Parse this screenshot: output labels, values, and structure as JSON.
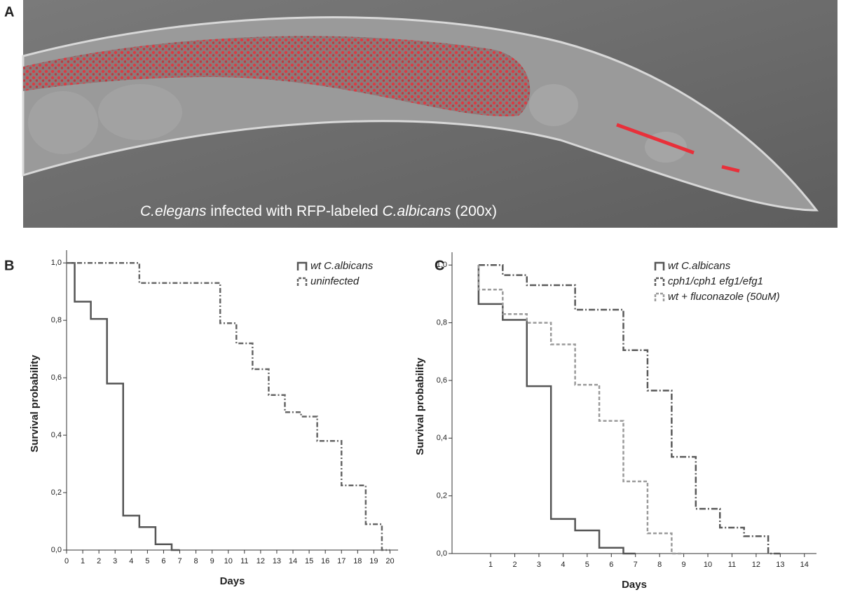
{
  "panel_a": {
    "label": "A",
    "caption": [
      "C.elegans",
      " infected with RFP-labeled ",
      "C.albicans",
      " (200x)"
    ]
  },
  "chart_data": [
    {
      "type": "line",
      "step": true,
      "panel_label": "B",
      "x_label": "Days",
      "y_label": "Survival probability",
      "xlim": [
        0,
        20.5
      ],
      "ylim": [
        0,
        1.02
      ],
      "xticks": [
        0,
        1,
        2,
        3,
        4,
        5,
        6,
        7,
        8,
        9,
        10,
        11,
        12,
        13,
        14,
        15,
        16,
        17,
        18,
        19,
        20
      ],
      "yticks": [
        {
          "value": 0,
          "label": "0,0"
        },
        {
          "value": 0.2,
          "label": "0,2"
        },
        {
          "value": 0.4,
          "label": "0,4"
        },
        {
          "value": 0.6,
          "label": "0,6"
        },
        {
          "value": 0.8,
          "label": "0,8"
        },
        {
          "value": 1,
          "label": "1,0"
        }
      ],
      "series": [
        {
          "name": "wt C.albicans",
          "color": "#555555",
          "dash": "none",
          "x": [
            0,
            0.5,
            1.5,
            2.5,
            3.5,
            4.5,
            5.5,
            6.5,
            7
          ],
          "values": [
            1,
            0.865,
            0.805,
            0.58,
            0.12,
            0.08,
            0.02,
            0,
            0
          ]
        },
        {
          "name": "uninfected",
          "color": "#666666",
          "dash": "7 3 2 3",
          "x": [
            0,
            4.5,
            9.5,
            10.5,
            11.5,
            12.5,
            13.5,
            14.5,
            15.5,
            17,
            18.5,
            19.5,
            20
          ],
          "values": [
            1,
            0.93,
            0.79,
            0.72,
            0.63,
            0.54,
            0.48,
            0.465,
            0.38,
            0.225,
            0.09,
            0,
            0
          ]
        }
      ]
    },
    {
      "type": "line",
      "step": true,
      "panel_label": "C",
      "x_label": "Days",
      "y_label": "Survival probability",
      "xlim": [
        -0.6,
        14.5
      ],
      "ylim": [
        0,
        1.02
      ],
      "xticks": [
        1,
        2,
        3,
        4,
        5,
        6,
        7,
        8,
        9,
        10,
        11,
        12,
        13,
        14
      ],
      "yticks": [
        {
          "value": 0,
          "label": "0,0"
        },
        {
          "value": 0.2,
          "label": "0,2"
        },
        {
          "value": 0.4,
          "label": "0,4"
        },
        {
          "value": 0.6,
          "label": "0,6"
        },
        {
          "value": 0.8,
          "label": "0,8"
        },
        {
          "value": 1,
          "label": "1,0"
        }
      ],
      "series": [
        {
          "name": "wt C.albicans",
          "color": "#555555",
          "dash": "none",
          "x": [
            0.5,
            0.5,
            1.5,
            2.5,
            3.5,
            4.5,
            5.5,
            6.5,
            7
          ],
          "values": [
            1,
            0.865,
            0.81,
            0.58,
            0.12,
            0.08,
            0.02,
            0,
            0
          ]
        },
        {
          "name": "cph1/cph1 efg1/efg1",
          "color": "#5a5a5a",
          "dash": "9 3 2 3",
          "x": [
            0.5,
            1.5,
            2.5,
            4.5,
            6.5,
            7.5,
            8.5,
            9.5,
            10.5,
            11.5,
            12.5,
            13
          ],
          "values": [
            1,
            0.965,
            0.93,
            0.845,
            0.705,
            0.565,
            0.335,
            0.155,
            0.09,
            0.06,
            0,
            0
          ]
        },
        {
          "name": "wt + fluconazole (50uM)",
          "color": "#9a9a9a",
          "dash": "5 3",
          "x": [
            0.5,
            0.5,
            1.5,
            2.5,
            3.5,
            4.5,
            5.5,
            6.5,
            7.5,
            8.5,
            9
          ],
          "values": [
            1,
            0.915,
            0.83,
            0.8,
            0.725,
            0.585,
            0.46,
            0.25,
            0.07,
            0,
            0
          ]
        }
      ]
    }
  ]
}
